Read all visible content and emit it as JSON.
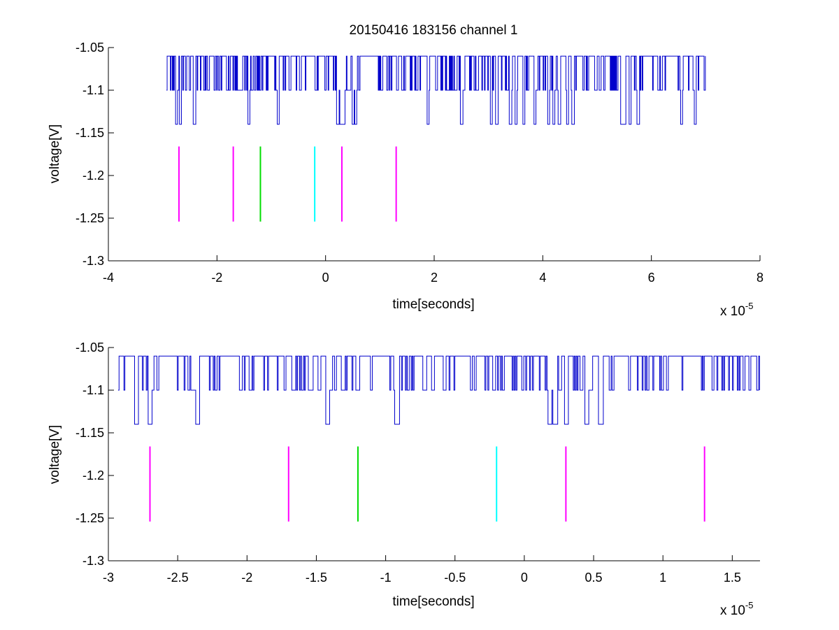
{
  "figure": {
    "title": "20150416 183156 channel 1",
    "colors": {
      "signal": "#0000cc",
      "magenta": "#ff00ff",
      "green": "#00dd00",
      "cyan": "#00ffff",
      "axes": "#000000"
    }
  },
  "chart_data": [
    {
      "type": "line",
      "title": "20150416 183156 channel 1",
      "xlabel": "time[seconds]",
      "ylabel": "voltage[V]",
      "x_exponent_label": "x 10",
      "x_exponent_power": "-5",
      "xlim": [
        -4,
        8
      ],
      "ylim": [
        -1.3,
        -1.05
      ],
      "xticks": [
        -4,
        -2,
        0,
        2,
        4,
        6,
        8
      ],
      "xtick_labels": [
        "-4",
        "-2",
        "0",
        "2",
        "4",
        "6",
        "8"
      ],
      "yticks": [
        -1.3,
        -1.25,
        -1.2,
        -1.15,
        -1.1,
        -1.05
      ],
      "ytick_labels": [
        "-1.3",
        "-1.25",
        "-1.2",
        "-1.15",
        "-1.1",
        "-1.05"
      ],
      "grid": false,
      "signal": {
        "x_start": -2.93,
        "x_end": 7.0,
        "levels": [
          -1.06,
          -1.1,
          -1.14
        ],
        "dips_x": [
          -2.75,
          -2.68,
          -2.42,
          -1.42,
          -0.88,
          0.22,
          0.28,
          0.33,
          0.5,
          0.55,
          1.88,
          2.5,
          3.05,
          3.15,
          3.4,
          3.5,
          3.65,
          3.85,
          4.1,
          4.2,
          4.3,
          4.45,
          4.55,
          5.45,
          5.5,
          5.6,
          5.75,
          6.55,
          6.8
        ]
      },
      "markers": [
        {
          "x": -2.7,
          "y_top": -1.166,
          "y_bottom": -1.254,
          "color": "magenta"
        },
        {
          "x": -1.7,
          "y_top": -1.166,
          "y_bottom": -1.254,
          "color": "magenta"
        },
        {
          "x": -1.2,
          "y_top": -1.166,
          "y_bottom": -1.254,
          "color": "green"
        },
        {
          "x": -0.2,
          "y_top": -1.166,
          "y_bottom": -1.254,
          "color": "cyan"
        },
        {
          "x": 0.3,
          "y_top": -1.166,
          "y_bottom": -1.254,
          "color": "magenta"
        },
        {
          "x": 1.3,
          "y_top": -1.166,
          "y_bottom": -1.254,
          "color": "magenta"
        }
      ]
    },
    {
      "type": "line",
      "title": "",
      "xlabel": "time[seconds]",
      "ylabel": "voltage[V]",
      "x_exponent_label": "x 10",
      "x_exponent_power": "-5",
      "xlim": [
        -3.0,
        1.7
      ],
      "ylim": [
        -1.3,
        -1.05
      ],
      "xticks": [
        -3,
        -2.5,
        -2,
        -1.5,
        -1,
        -0.5,
        0,
        0.5,
        1,
        1.5
      ],
      "xtick_labels": [
        "-3",
        "-2.5",
        "-2",
        "-1.5",
        "-1",
        "-0.5",
        "0",
        "0.5",
        "1",
        "1.5"
      ],
      "yticks": [
        -1.3,
        -1.25,
        -1.2,
        -1.15,
        -1.1,
        -1.05
      ],
      "ytick_labels": [
        "-1.3",
        "-1.25",
        "-1.2",
        "-1.15",
        "-1.1",
        "-1.05"
      ],
      "grid": false,
      "signal": {
        "x_start": -2.93,
        "x_end": 1.7,
        "levels": [
          -1.06,
          -1.1,
          -1.14
        ],
        "dips_x": [
          -2.8,
          -2.7,
          -2.36,
          -1.42,
          -0.92,
          0.18,
          0.22,
          0.3,
          0.45,
          0.55
        ]
      },
      "markers": [
        {
          "x": -2.7,
          "y_top": -1.166,
          "y_bottom": -1.254,
          "color": "magenta"
        },
        {
          "x": -1.7,
          "y_top": -1.166,
          "y_bottom": -1.254,
          "color": "magenta"
        },
        {
          "x": -1.2,
          "y_top": -1.166,
          "y_bottom": -1.254,
          "color": "green"
        },
        {
          "x": -0.2,
          "y_top": -1.166,
          "y_bottom": -1.254,
          "color": "cyan"
        },
        {
          "x": 0.3,
          "y_top": -1.166,
          "y_bottom": -1.254,
          "color": "magenta"
        },
        {
          "x": 1.3,
          "y_top": -1.166,
          "y_bottom": -1.254,
          "color": "magenta"
        }
      ]
    }
  ]
}
